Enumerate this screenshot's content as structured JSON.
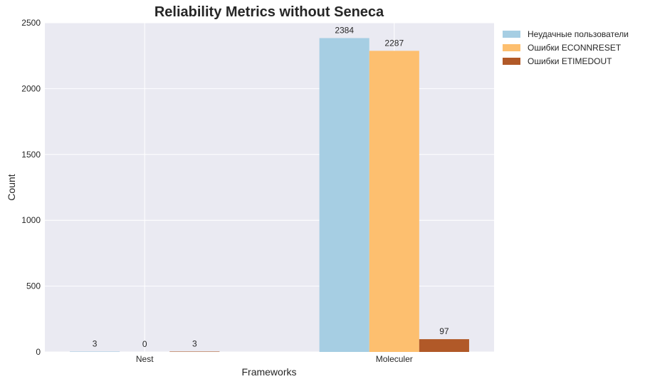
{
  "chart_data": {
    "type": "bar",
    "title": "Reliability Metrics without Seneca",
    "xlabel": "Frameworks",
    "ylabel": "Count",
    "categories": [
      "Nest",
      "Moleculer"
    ],
    "series": [
      {
        "name": "Неудачные пользователи",
        "values": [
          3,
          2384
        ],
        "color": "#a6cee3",
        "labels": [
          "3",
          "2384"
        ]
      },
      {
        "name": "Ошибки ECONNRESET",
        "values": [
          0,
          2287
        ],
        "color": "#fdbf6f",
        "labels": [
          "0",
          "2287"
        ]
      },
      {
        "name": "Ошибки ETIMEDOUT",
        "values": [
          3,
          97
        ],
        "color": "#b15928",
        "labels": [
          "3",
          "97"
        ]
      }
    ],
    "ylim": [
      0,
      2500
    ],
    "yticks": [
      0,
      500,
      1000,
      1500,
      2000,
      2500
    ],
    "grid": true,
    "legend": "outside-top-right",
    "background": "#eaeaf2"
  }
}
